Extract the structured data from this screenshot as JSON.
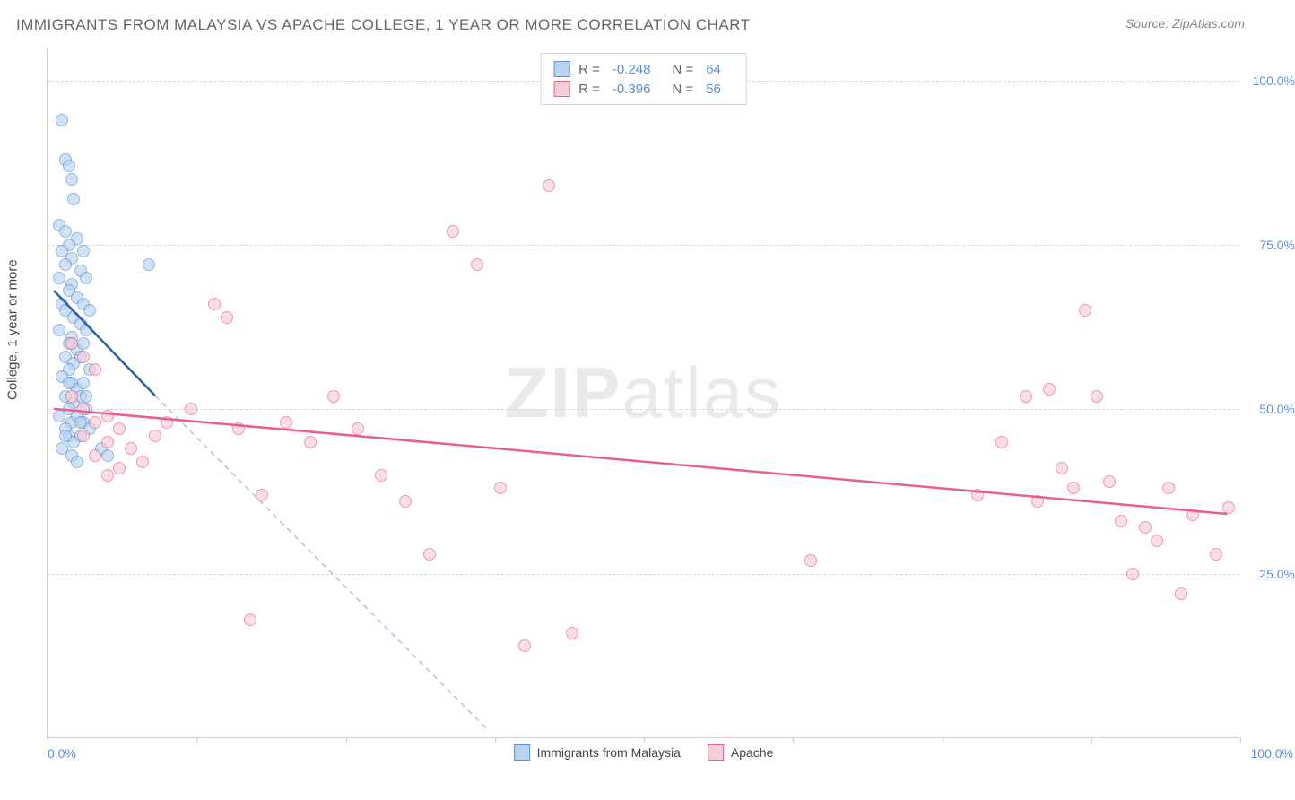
{
  "title": "IMMIGRANTS FROM MALAYSIA VS APACHE COLLEGE, 1 YEAR OR MORE CORRELATION CHART",
  "source_prefix": "Source: ",
  "source_name": "ZipAtlas.com",
  "watermark_a": "ZIP",
  "watermark_b": "atlas",
  "y_axis_title": "College, 1 year or more",
  "chart": {
    "type": "scatter",
    "xlim": [
      0,
      100
    ],
    "ylim": [
      0,
      105
    ],
    "x_tick_positions": [
      0,
      12.5,
      25,
      37.5,
      50,
      62.5,
      75,
      87.5,
      100
    ],
    "x_labels": {
      "min": "0.0%",
      "max": "100.0%"
    },
    "y_gridlines": [
      25,
      50,
      75,
      100
    ],
    "y_labels": [
      "25.0%",
      "50.0%",
      "75.0%",
      "100.0%"
    ],
    "background_color": "#ffffff",
    "grid_color": "#d8d8d8",
    "axis_color": "#cccccc",
    "label_color": "#5b8fd6",
    "marker_radius": 7,
    "marker_opacity": 0.65,
    "series": [
      {
        "name": "Immigrants from Malaysia",
        "fill": "#b9d3f0",
        "stroke": "#5b8fd6",
        "line_color": "#2f5fa8",
        "line_width": 2.5,
        "dash_color": "#a9c2e2",
        "R": "-0.248",
        "N": "64",
        "trend": {
          "x1": 0.5,
          "y1": 68,
          "x2": 9,
          "y2": 52
        },
        "trend_ext": {
          "x1": 9,
          "y1": 52,
          "x2": 37,
          "y2": 1
        },
        "points": [
          [
            1.2,
            94
          ],
          [
            1.5,
            88
          ],
          [
            1.8,
            87
          ],
          [
            2.0,
            85
          ],
          [
            2.2,
            82
          ],
          [
            1.0,
            78
          ],
          [
            1.5,
            77
          ],
          [
            2.5,
            76
          ],
          [
            1.8,
            75
          ],
          [
            1.2,
            74
          ],
          [
            2.0,
            73
          ],
          [
            3.0,
            74
          ],
          [
            1.5,
            72
          ],
          [
            2.8,
            71
          ],
          [
            8.5,
            72
          ],
          [
            1.0,
            70
          ],
          [
            2.0,
            69
          ],
          [
            3.2,
            70
          ],
          [
            1.8,
            68
          ],
          [
            2.5,
            67
          ],
          [
            1.2,
            66
          ],
          [
            3.0,
            66
          ],
          [
            1.5,
            65
          ],
          [
            2.2,
            64
          ],
          [
            3.5,
            65
          ],
          [
            2.8,
            63
          ],
          [
            1.0,
            62
          ],
          [
            2.0,
            61
          ],
          [
            1.8,
            60
          ],
          [
            3.2,
            62
          ],
          [
            2.5,
            59
          ],
          [
            1.5,
            58
          ],
          [
            3.0,
            60
          ],
          [
            2.2,
            57
          ],
          [
            1.8,
            56
          ],
          [
            2.8,
            58
          ],
          [
            1.2,
            55
          ],
          [
            2.0,
            54
          ],
          [
            3.5,
            56
          ],
          [
            2.5,
            53
          ],
          [
            1.5,
            52
          ],
          [
            2.2,
            51
          ],
          [
            3.0,
            54
          ],
          [
            1.8,
            50
          ],
          [
            2.8,
            52
          ],
          [
            1.0,
            49
          ],
          [
            2.0,
            48
          ],
          [
            1.5,
            47
          ],
          [
            2.5,
            49
          ],
          [
            3.2,
            50
          ],
          [
            1.8,
            46
          ],
          [
            2.2,
            45
          ],
          [
            3.0,
            48
          ],
          [
            2.8,
            46
          ],
          [
            1.2,
            44
          ],
          [
            2.0,
            43
          ],
          [
            3.5,
            47
          ],
          [
            4.5,
            44
          ],
          [
            5.0,
            43
          ],
          [
            2.5,
            42
          ],
          [
            1.5,
            46
          ],
          [
            2.8,
            48
          ],
          [
            3.2,
            52
          ],
          [
            1.8,
            54
          ]
        ]
      },
      {
        "name": "Apache",
        "fill": "#f7cdd8",
        "stroke": "#e95f8a",
        "line_color": "#e95f8a",
        "line_width": 2.5,
        "R": "-0.396",
        "N": "56",
        "trend": {
          "x1": 0.5,
          "y1": 50,
          "x2": 99,
          "y2": 34
        },
        "points": [
          [
            2,
            60
          ],
          [
            3,
            58
          ],
          [
            4,
            56
          ],
          [
            2,
            52
          ],
          [
            3,
            50
          ],
          [
            5,
            49
          ],
          [
            4,
            48
          ],
          [
            6,
            47
          ],
          [
            3,
            46
          ],
          [
            5,
            45
          ],
          [
            7,
            44
          ],
          [
            4,
            43
          ],
          [
            8,
            42
          ],
          [
            6,
            41
          ],
          [
            5,
            40
          ],
          [
            9,
            46
          ],
          [
            10,
            48
          ],
          [
            14,
            66
          ],
          [
            15,
            64
          ],
          [
            12,
            50
          ],
          [
            16,
            47
          ],
          [
            18,
            37
          ],
          [
            20,
            48
          ],
          [
            22,
            45
          ],
          [
            17,
            18
          ],
          [
            24,
            52
          ],
          [
            26,
            47
          ],
          [
            28,
            40
          ],
          [
            30,
            36
          ],
          [
            32,
            28
          ],
          [
            34,
            77
          ],
          [
            36,
            72
          ],
          [
            38,
            38
          ],
          [
            40,
            14
          ],
          [
            42,
            84
          ],
          [
            44,
            16
          ],
          [
            64,
            27
          ],
          [
            78,
            37
          ],
          [
            80,
            45
          ],
          [
            82,
            52
          ],
          [
            83,
            36
          ],
          [
            84,
            53
          ],
          [
            85,
            41
          ],
          [
            86,
            38
          ],
          [
            87,
            65
          ],
          [
            88,
            52
          ],
          [
            89,
            39
          ],
          [
            90,
            33
          ],
          [
            91,
            25
          ],
          [
            92,
            32
          ],
          [
            93,
            30
          ],
          [
            94,
            38
          ],
          [
            95,
            22
          ],
          [
            96,
            34
          ],
          [
            98,
            28
          ],
          [
            99,
            35
          ]
        ]
      }
    ]
  },
  "legend_top": {
    "r_label": "R =",
    "n_label": "N ="
  }
}
